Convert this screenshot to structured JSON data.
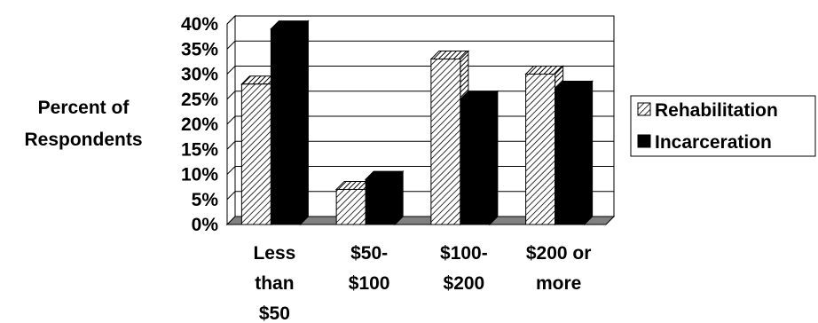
{
  "chart_data": {
    "type": "bar",
    "style": "3d-clustered-column",
    "title": "",
    "ylabel_lines": [
      "Percent of",
      "Respondents"
    ],
    "xlabel": "",
    "categories": [
      [
        "Less",
        "than",
        "$50"
      ],
      [
        "$50-",
        "$100"
      ],
      [
        "$100-",
        "$200"
      ],
      [
        "$200 or",
        "more"
      ]
    ],
    "ylim": [
      0,
      40
    ],
    "yticks": [
      {
        "value": 0,
        "label": "0%"
      },
      {
        "value": 5,
        "label": "5%"
      },
      {
        "value": 10,
        "label": "10%"
      },
      {
        "value": 15,
        "label": "15%"
      },
      {
        "value": 20,
        "label": "20%"
      },
      {
        "value": 25,
        "label": "25%"
      },
      {
        "value": 30,
        "label": "30%"
      },
      {
        "value": 35,
        "label": "35%"
      },
      {
        "value": 40,
        "label": "40%"
      }
    ],
    "grid": true,
    "legend_position": "right",
    "series": [
      {
        "name": "Rehabilitation",
        "values": [
          28,
          7,
          33,
          30
        ],
        "pattern": "hatched"
      },
      {
        "name": "Incarceration",
        "values": [
          39,
          9,
          25,
          27
        ],
        "pattern": "solid-black"
      }
    ]
  }
}
